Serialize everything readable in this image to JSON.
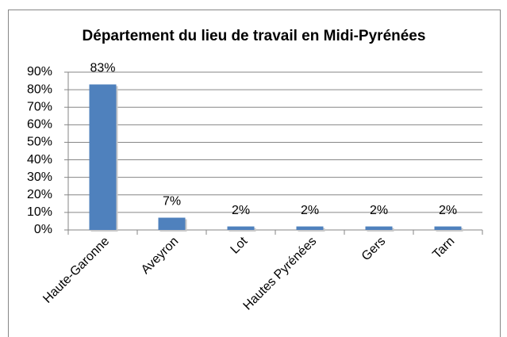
{
  "chart_data": {
    "type": "bar",
    "title": "Département du lieu de travail en Midi-Pyrénées",
    "categories": [
      "Haute-Garonne",
      "Aveyron",
      "Lot",
      "Hautes Pyrénées",
      "Gers",
      "Tarn"
    ],
    "values": [
      83,
      7,
      2,
      2,
      2,
      2
    ],
    "value_labels": [
      "83%",
      "7%",
      "2%",
      "2%",
      "2%",
      "2%"
    ],
    "color": "#4f81bd",
    "ylim": [
      0,
      90
    ],
    "yticks": [
      {
        "value": 0,
        "label": "0%"
      },
      {
        "value": 10,
        "label": "10%"
      },
      {
        "value": 20,
        "label": "20%"
      },
      {
        "value": 30,
        "label": "30%"
      },
      {
        "value": 40,
        "label": "40%"
      },
      {
        "value": 50,
        "label": "50%"
      },
      {
        "value": 60,
        "label": "60%"
      },
      {
        "value": 70,
        "label": "70%"
      },
      {
        "value": 80,
        "label": "80%"
      },
      {
        "value": 90,
        "label": "90%"
      }
    ],
    "grid": true
  }
}
